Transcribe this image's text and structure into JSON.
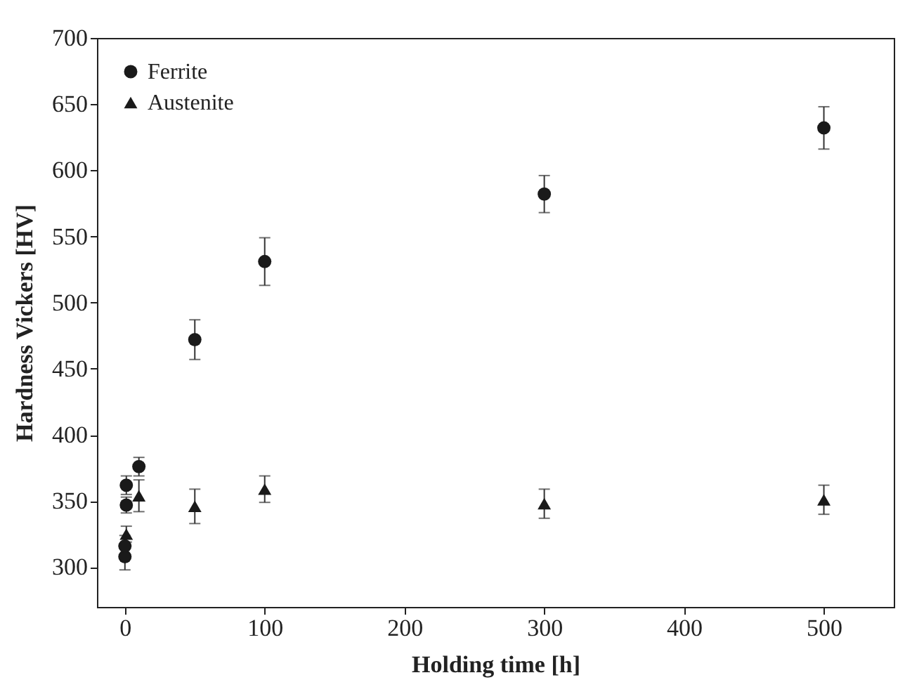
{
  "chart_data": {
    "type": "scatter",
    "xlabel": "Holding time [h]",
    "ylabel": "Hardness Vickers [HV]",
    "xlim": [
      -20,
      550
    ],
    "ylim": [
      270,
      700
    ],
    "xticks": [
      0,
      100,
      200,
      300,
      400,
      500
    ],
    "yticks": [
      300,
      350,
      400,
      450,
      500,
      550,
      600,
      650,
      700
    ],
    "legend": "top left",
    "grid": false,
    "series": [
      {
        "name": "Ferrite",
        "color": "#1a1a1a",
        "marker": "circle",
        "x": [
          0,
          0,
          1,
          1,
          10,
          50,
          100,
          300,
          500
        ],
        "values": [
          308,
          316,
          347,
          362,
          376,
          472,
          531,
          582,
          632
        ],
        "errors": [
          10,
          8,
          6,
          7,
          7,
          15,
          18,
          14,
          16
        ]
      },
      {
        "name": "Austenite",
        "color": "#1a1a1a",
        "marker": "triangle",
        "x": [
          1,
          10,
          50,
          100,
          300,
          500
        ],
        "values": [
          325,
          354,
          346,
          359,
          348,
          351
        ],
        "errors": [
          6,
          12,
          13,
          10,
          11,
          11
        ]
      }
    ]
  }
}
